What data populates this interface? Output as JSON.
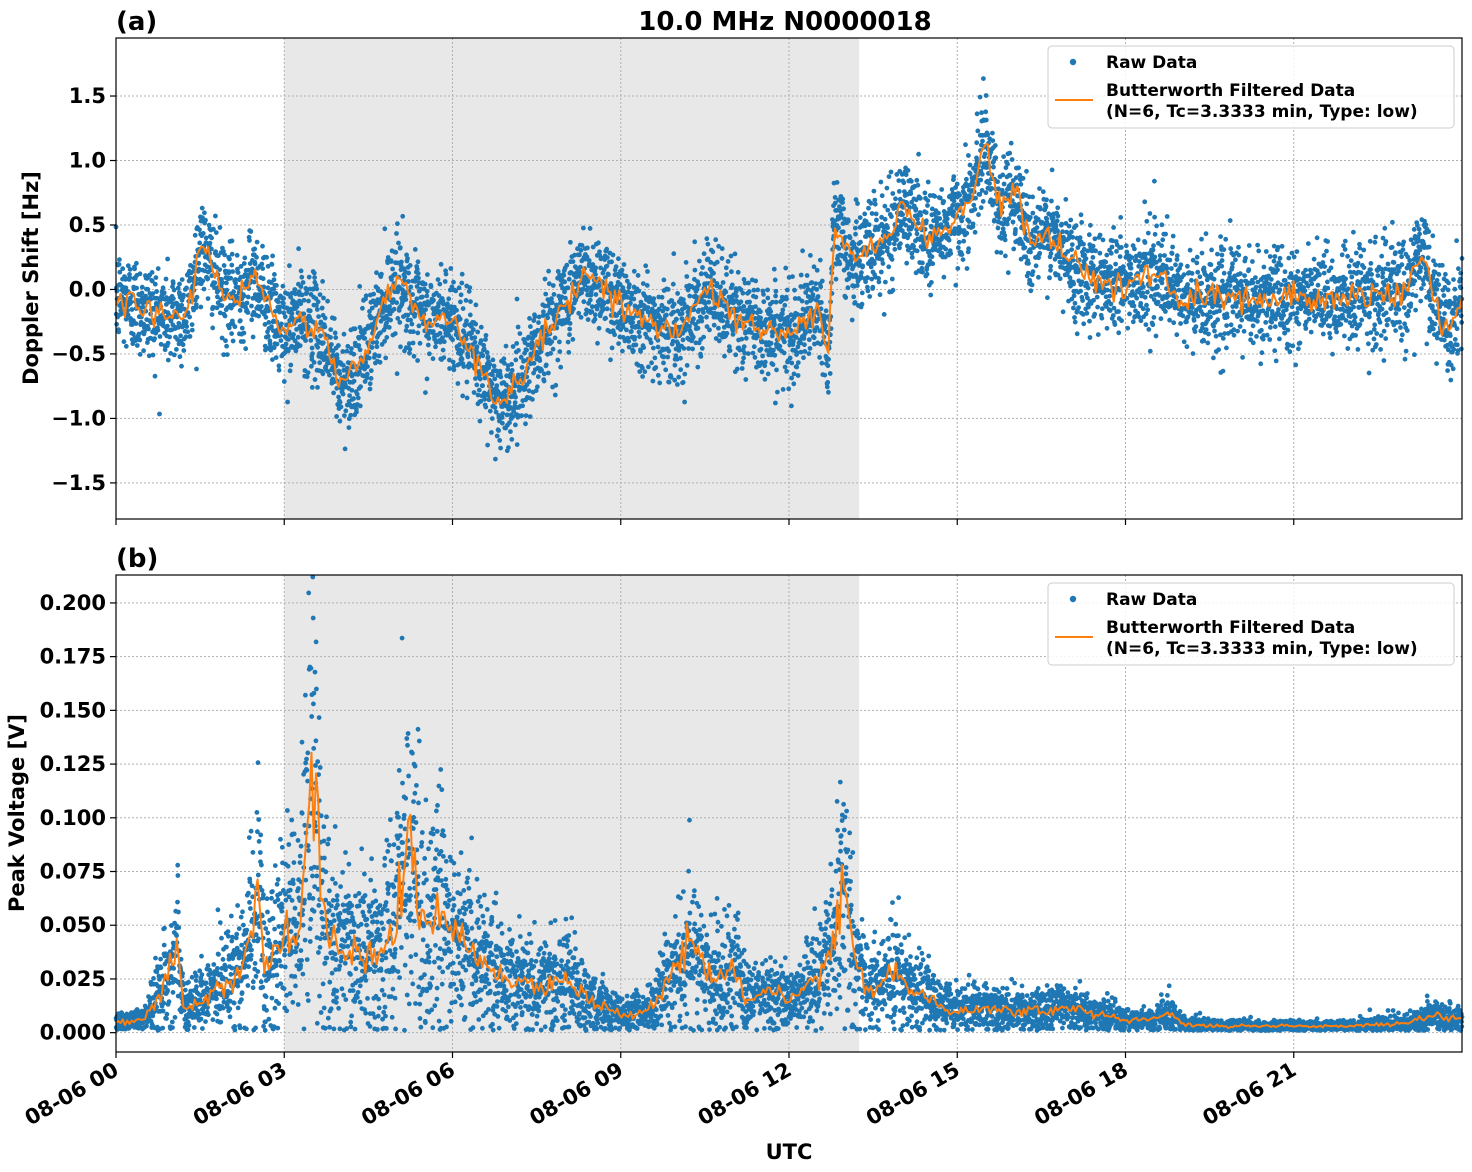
{
  "figure_title": "10.0 MHz N0000018",
  "xlabel": "UTC",
  "x_tick_labels": [
    "08-06 00",
    "08-06 03",
    "08-06 06",
    "08-06 09",
    "08-06 12",
    "08-06 15",
    "08-06 18",
    "08-06 21"
  ],
  "colors": {
    "raw": "#1f77b4",
    "filtered": "#ff7f0e",
    "shade": "#e8e8e8",
    "grid": "#b0b0b0"
  },
  "chart_data": [
    {
      "type": "scatter",
      "panel_label": "(a)",
      "ylabel": "Doppler Shift [Hz]",
      "xlim_hours": [
        0,
        24
      ],
      "ylim": [
        -1.78,
        1.95
      ],
      "x_ticks_hours": [
        0,
        3,
        6,
        9,
        12,
        15,
        18,
        21
      ],
      "y_ticks": [
        1.5,
        1.0,
        0.5,
        0.0,
        -0.5,
        -1.0,
        -1.5
      ],
      "y_tick_labels": [
        "1.5",
        "1.0",
        "0.5",
        "0.0",
        "−0.5",
        "−1.0",
        "−1.5"
      ],
      "shaded_region_hours": [
        3.0,
        13.25
      ],
      "grid": true,
      "legend_position": "top-right",
      "legend": {
        "raw": "Raw Data",
        "filtered_line1": "Butterworth Filtered Data",
        "filtered_line2": "(N=6, Tc=3.3333 min, Type: low)"
      },
      "series": [
        {
          "name": "Butterworth Filtered Data",
          "type": "line",
          "x_hours": [
            0,
            0.5,
            1.0,
            1.3,
            1.5,
            2.0,
            2.5,
            2.8,
            3.0,
            3.3,
            3.7,
            4.0,
            4.3,
            4.6,
            5.0,
            5.3,
            5.6,
            6.0,
            6.3,
            6.6,
            6.9,
            7.2,
            7.5,
            8.0,
            8.3,
            8.6,
            9.0,
            9.5,
            10.0,
            10.5,
            11.0,
            11.5,
            12.0,
            12.5,
            12.7,
            12.8,
            13.0,
            13.2,
            13.5,
            13.8,
            14.0,
            14.5,
            15.0,
            15.3,
            15.5,
            15.8,
            16.0,
            16.3,
            16.6,
            17.0,
            17.5,
            18.0,
            18.5,
            19.0,
            19.5,
            20.0,
            20.5,
            21.0,
            21.5,
            22.0,
            22.5,
            23.0,
            23.3,
            23.5,
            23.8,
            24.0
          ],
          "y": [
            -0.05,
            -0.15,
            -0.22,
            -0.15,
            0.35,
            -0.1,
            0.1,
            -0.2,
            -0.35,
            -0.2,
            -0.35,
            -0.75,
            -0.6,
            -0.3,
            0.1,
            -0.15,
            -0.25,
            -0.2,
            -0.45,
            -0.7,
            -0.9,
            -0.7,
            -0.45,
            -0.1,
            0.1,
            0.05,
            -0.1,
            -0.25,
            -0.35,
            0.0,
            -0.2,
            -0.3,
            -0.35,
            -0.15,
            -0.5,
            0.55,
            0.3,
            0.2,
            0.35,
            0.4,
            0.65,
            0.4,
            0.55,
            0.75,
            1.15,
            0.55,
            0.8,
            0.35,
            0.45,
            0.2,
            0.1,
            0.05,
            0.15,
            -0.1,
            -0.05,
            -0.05,
            -0.1,
            -0.05,
            -0.1,
            -0.05,
            -0.05,
            0.0,
            0.3,
            -0.1,
            -0.35,
            -0.05
          ]
        },
        {
          "name": "Raw Data",
          "type": "scatter",
          "spread_about_filtered": 0.35
        }
      ]
    },
    {
      "type": "scatter",
      "panel_label": "(b)",
      "ylabel": "Peak Voltage [V]",
      "xlim_hours": [
        0,
        24
      ],
      "ylim": [
        -0.009,
        0.213
      ],
      "x_ticks_hours": [
        0,
        3,
        6,
        9,
        12,
        15,
        18,
        21
      ],
      "y_ticks": [
        0.2,
        0.175,
        0.15,
        0.125,
        0.1,
        0.075,
        0.05,
        0.025,
        0.0
      ],
      "y_tick_labels": [
        "0.200",
        "0.175",
        "0.150",
        "0.125",
        "0.100",
        "0.075",
        "0.050",
        "0.025",
        "0.000"
      ],
      "shaded_region_hours": [
        3.0,
        13.25
      ],
      "grid": true,
      "legend_position": "top-right",
      "legend": {
        "raw": "Raw Data",
        "filtered_line1": "Butterworth Filtered Data",
        "filtered_line2": "(N=6, Tc=3.3333 min, Type: low)"
      },
      "series": [
        {
          "name": "Butterworth Filtered Data",
          "type": "line",
          "x_hours": [
            0,
            0.5,
            0.9,
            1.1,
            1.2,
            1.5,
            2.0,
            2.3,
            2.55,
            2.65,
            3.0,
            3.3,
            3.5,
            3.7,
            4.0,
            4.5,
            5.0,
            5.2,
            5.5,
            5.8,
            6.0,
            6.5,
            7.0,
            7.5,
            8.0,
            8.5,
            9.0,
            9.5,
            10.0,
            10.3,
            10.6,
            11.0,
            11.3,
            11.6,
            12.0,
            12.5,
            12.8,
            12.95,
            13.2,
            13.5,
            13.9,
            14.2,
            14.5,
            15.0,
            15.5,
            16.0,
            16.5,
            17.0,
            17.5,
            18.0,
            18.5,
            18.8,
            19.0,
            19.5,
            20.0,
            21.0,
            22.0,
            22.5,
            23.0,
            23.5,
            24.0
          ],
          "y": [
            0.005,
            0.006,
            0.025,
            0.04,
            0.012,
            0.015,
            0.025,
            0.03,
            0.065,
            0.03,
            0.045,
            0.06,
            0.12,
            0.05,
            0.04,
            0.035,
            0.05,
            0.09,
            0.045,
            0.06,
            0.045,
            0.035,
            0.025,
            0.02,
            0.025,
            0.015,
            0.008,
            0.01,
            0.03,
            0.04,
            0.025,
            0.03,
            0.015,
            0.02,
            0.015,
            0.025,
            0.04,
            0.08,
            0.03,
            0.02,
            0.03,
            0.02,
            0.015,
            0.01,
            0.012,
            0.01,
            0.01,
            0.012,
            0.008,
            0.006,
            0.006,
            0.01,
            0.004,
            0.003,
            0.003,
            0.003,
            0.003,
            0.004,
            0.004,
            0.008,
            0.006
          ]
        },
        {
          "name": "Raw Data",
          "type": "scatter",
          "spread_about_filtered": 0.9
        }
      ]
    }
  ]
}
